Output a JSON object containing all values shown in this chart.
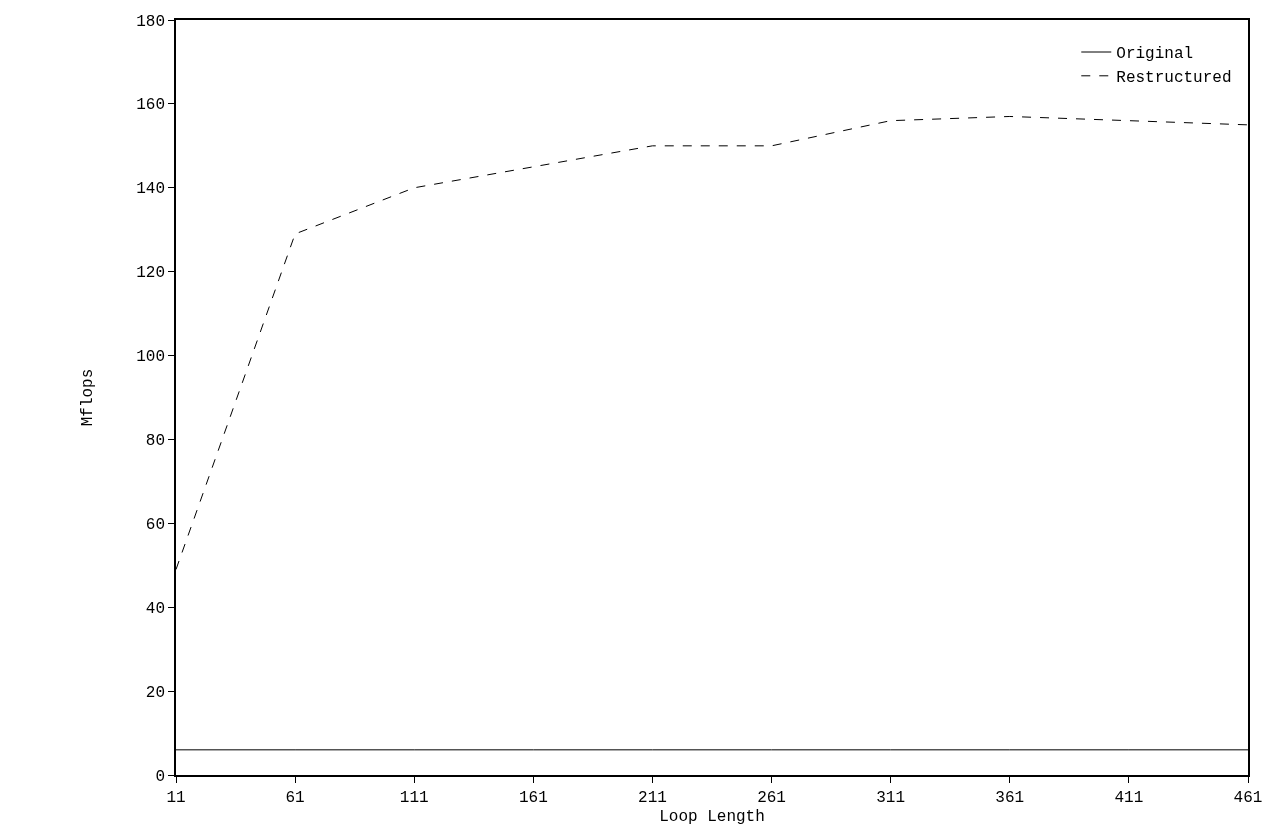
{
  "chart_data": {
    "type": "line",
    "xlabel": "Loop Length",
    "ylabel": "Mflops",
    "x": [
      11,
      61,
      111,
      161,
      211,
      261,
      311,
      361,
      411,
      461
    ],
    "series": [
      {
        "name": "Original",
        "color": "#000000",
        "line_style": "solid",
        "values": [
          6,
          6,
          6,
          6,
          6,
          6,
          6,
          6,
          6,
          6
        ]
      },
      {
        "name": "Restructured",
        "color": "#000000",
        "line_style": "dashed",
        "values": [
          49,
          129,
          140,
          145,
          150,
          150,
          156,
          157,
          156,
          155
        ]
      }
    ],
    "xlim": [
      11,
      461
    ],
    "xticks": [
      11,
      61,
      111,
      161,
      211,
      261,
      311,
      361,
      411,
      461
    ],
    "ylim": [
      0,
      180
    ],
    "yticks": [
      0,
      20,
      40,
      60,
      80,
      100,
      120,
      140,
      160,
      180
    ],
    "grid": false,
    "legend": "top right",
    "marker": "none"
  }
}
